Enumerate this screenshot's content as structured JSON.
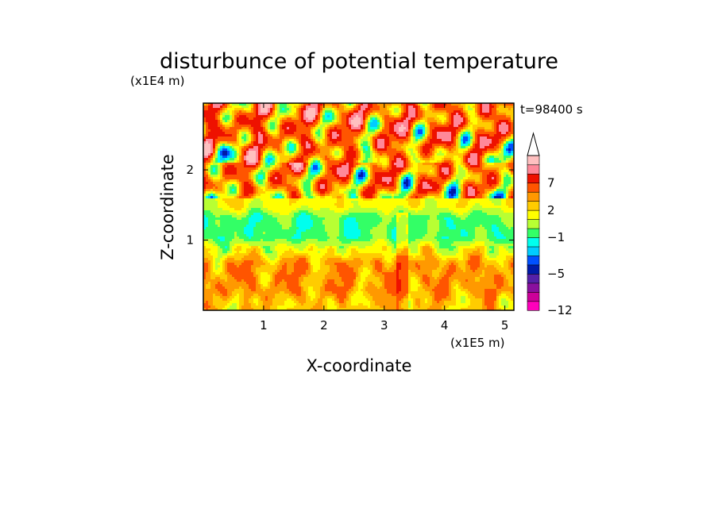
{
  "chart_data": {
    "type": "heatmap",
    "title": "disturbunce of potential temperature",
    "time_label": "t=98400 s",
    "xlabel": "X-coordinate",
    "ylabel": "Z-coordinate",
    "x_unit": "(x1E5 m)",
    "y_unit": "(x1E4 m)",
    "xlim": [
      0,
      5.15
    ],
    "ylim": [
      0,
      2.95
    ],
    "x_ticks": [
      "1",
      "2",
      "3",
      "4",
      "5"
    ],
    "y_ticks": [
      "1",
      "2"
    ],
    "grid": false,
    "colorbar": {
      "levels": [
        -12,
        -11,
        -9,
        -7,
        -5,
        -4,
        -3,
        -2,
        -1,
        0,
        1,
        2,
        3,
        5,
        7,
        9
      ],
      "colors": [
        "#ff00bb",
        "#cc0099",
        "#8a0f9e",
        "#5520a8",
        "#001aa8",
        "#0050ff",
        "#00ccff",
        "#00ffee",
        "#33ff66",
        "#b8ff33",
        "#ffff00",
        "#ffcc00",
        "#ff9900",
        "#ff5500",
        "#ee1100",
        "#ff8899",
        "#ffc0c0"
      ],
      "tick_labels": [
        "-12",
        "-5",
        "-1",
        "2",
        "7"
      ],
      "extend": "max"
    },
    "layers": [
      {
        "z_range": [
          0.0,
          0.2
        ],
        "value": 1.5,
        "description_color": "yellow"
      },
      {
        "z_range": [
          0.2,
          0.75
        ],
        "value": 2.5,
        "description_color": "orange"
      },
      {
        "z_range": [
          0.75,
          0.95
        ],
        "value": 0.5,
        "description_color": "green"
      },
      {
        "z_range": [
          0.95,
          1.4
        ],
        "value": -1.5,
        "description_color": "cyan"
      },
      {
        "z_range": [
          1.4,
          1.65
        ],
        "value": 0.5,
        "description_color": "green"
      },
      {
        "z_range": [
          1.65,
          2.0
        ],
        "value": 2.5,
        "description_color": "orange"
      },
      {
        "z_range": [
          2.0,
          2.95
        ],
        "value": 3.5,
        "description_color": "orange-red"
      }
    ]
  }
}
